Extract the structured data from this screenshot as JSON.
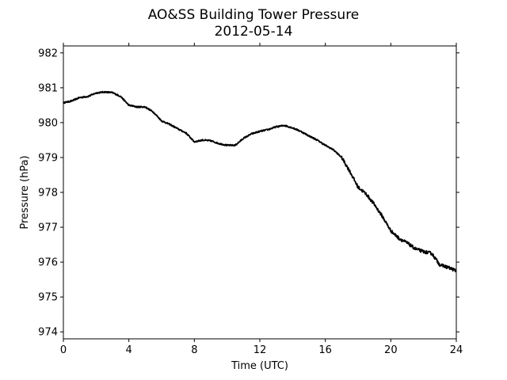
{
  "chart_data": {
    "type": "line",
    "title": "AO&SS Building Tower Pressure",
    "subtitle": "2012-05-14",
    "xlabel": "Time (UTC)",
    "ylabel": "Pressure (hPa)",
    "xlim": [
      0,
      24
    ],
    "ylim": [
      973.8,
      982.2
    ],
    "xticks": [
      0,
      4,
      8,
      12,
      16,
      20,
      24
    ],
    "yticks": [
      974,
      975,
      976,
      977,
      978,
      979,
      980,
      981,
      982
    ],
    "grid": false,
    "legend": "none",
    "series": [
      {
        "color": "#000000",
        "points": [
          [
            0.0,
            980.57
          ],
          [
            0.5,
            980.62
          ],
          [
            1.0,
            980.72
          ],
          [
            1.5,
            980.75
          ],
          [
            2.0,
            980.85
          ],
          [
            2.5,
            980.88
          ],
          [
            3.0,
            980.86
          ],
          [
            3.5,
            980.75
          ],
          [
            4.0,
            980.5
          ],
          [
            4.5,
            980.45
          ],
          [
            5.0,
            980.45
          ],
          [
            5.5,
            980.3
          ],
          [
            6.0,
            980.05
          ],
          [
            6.5,
            979.95
          ],
          [
            7.0,
            979.82
          ],
          [
            7.5,
            979.7
          ],
          [
            8.0,
            979.45
          ],
          [
            8.5,
            979.5
          ],
          [
            9.0,
            979.48
          ],
          [
            9.5,
            979.4
          ],
          [
            10.0,
            979.35
          ],
          [
            10.5,
            979.35
          ],
          [
            11.0,
            979.55
          ],
          [
            11.5,
            979.68
          ],
          [
            12.0,
            979.75
          ],
          [
            12.5,
            979.8
          ],
          [
            13.0,
            979.88
          ],
          [
            13.5,
            979.92
          ],
          [
            14.0,
            979.85
          ],
          [
            14.5,
            979.75
          ],
          [
            15.0,
            979.62
          ],
          [
            15.5,
            979.5
          ],
          [
            16.0,
            979.35
          ],
          [
            16.5,
            979.22
          ],
          [
            17.0,
            979.0
          ],
          [
            17.5,
            978.6
          ],
          [
            18.0,
            978.15
          ],
          [
            18.5,
            977.95
          ],
          [
            19.0,
            977.65
          ],
          [
            19.5,
            977.3
          ],
          [
            20.0,
            976.9
          ],
          [
            20.5,
            976.68
          ],
          [
            21.0,
            976.55
          ],
          [
            21.5,
            976.38
          ],
          [
            22.0,
            976.3
          ],
          [
            22.5,
            976.25
          ],
          [
            23.0,
            975.92
          ],
          [
            23.5,
            975.85
          ],
          [
            24.0,
            975.75
          ]
        ]
      }
    ]
  }
}
